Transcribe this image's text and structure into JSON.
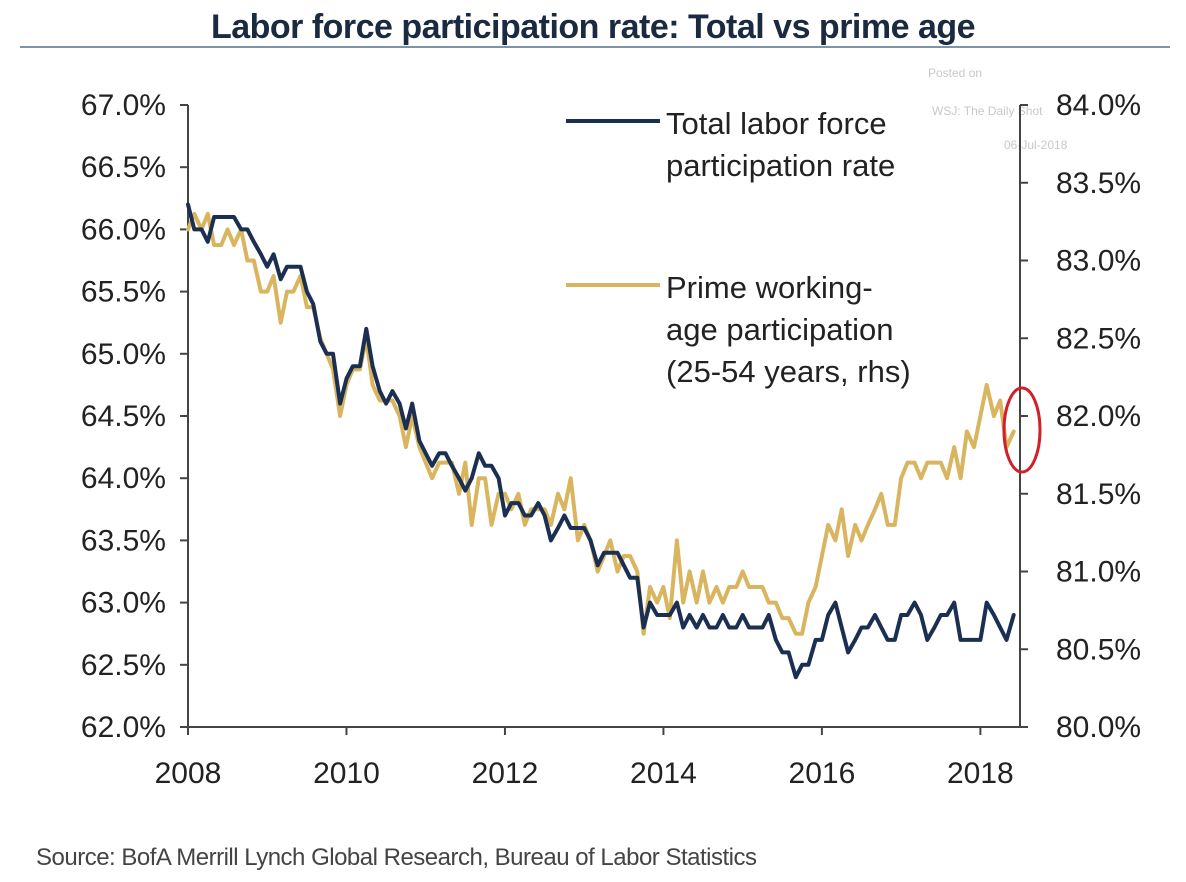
{
  "title": "Labor force participation rate: Total vs prime age",
  "source": "Source: BofA Merrill Lynch Global Research, Bureau of Labor Statistics",
  "watermark": [
    "Posted on",
    "WSJ: The Daily Shot",
    "06-Jul-2018"
  ],
  "colors": {
    "total": "#1b2f52",
    "prime": "#d9b55f",
    "axis": "#444444",
    "highlight": "#d0202a"
  },
  "chart_data": {
    "type": "line",
    "x_axis": {
      "min": 2008,
      "max": 2018.5,
      "ticks": [
        2008,
        2010,
        2012,
        2014,
        2016,
        2018
      ],
      "tick_labels": [
        "2008",
        "2010",
        "2012",
        "2014",
        "2016",
        "2018"
      ]
    },
    "y_left": {
      "min": 62.0,
      "max": 67.0,
      "ticks": [
        62.0,
        62.5,
        63.0,
        63.5,
        64.0,
        64.5,
        65.0,
        65.5,
        66.0,
        66.5,
        67.0
      ],
      "tick_labels": [
        "62.0%",
        "62.5%",
        "63.0%",
        "63.5%",
        "64.0%",
        "64.5%",
        "65.0%",
        "65.5%",
        "66.0%",
        "66.5%",
        "67.0%"
      ]
    },
    "y_right": {
      "min": 80.0,
      "max": 84.0,
      "ticks": [
        80.0,
        80.5,
        81.0,
        81.5,
        82.0,
        82.5,
        83.0,
        83.5,
        84.0
      ],
      "tick_labels": [
        "80.0%",
        "80.5%",
        "81.0%",
        "81.5%",
        "82.0%",
        "82.5%",
        "83.0%",
        "83.5%",
        "84.0%"
      ]
    },
    "series": [
      {
        "name": "Total labor force participation rate",
        "axis": "left",
        "points": [
          [
            2008.0,
            66.2
          ],
          [
            2008.08,
            66.0
          ],
          [
            2008.17,
            66.0
          ],
          [
            2008.25,
            65.9
          ],
          [
            2008.33,
            66.1
          ],
          [
            2008.42,
            66.1
          ],
          [
            2008.5,
            66.1
          ],
          [
            2008.58,
            66.1
          ],
          [
            2008.67,
            66.0
          ],
          [
            2008.75,
            66.0
          ],
          [
            2008.83,
            65.9
          ],
          [
            2008.92,
            65.8
          ],
          [
            2009.0,
            65.7
          ],
          [
            2009.08,
            65.8
          ],
          [
            2009.17,
            65.6
          ],
          [
            2009.25,
            65.7
          ],
          [
            2009.33,
            65.7
          ],
          [
            2009.42,
            65.7
          ],
          [
            2009.5,
            65.5
          ],
          [
            2009.58,
            65.4
          ],
          [
            2009.67,
            65.1
          ],
          [
            2009.75,
            65.0
          ],
          [
            2009.83,
            65.0
          ],
          [
            2009.92,
            64.6
          ],
          [
            2010.0,
            64.8
          ],
          [
            2010.08,
            64.9
          ],
          [
            2010.17,
            64.9
          ],
          [
            2010.25,
            65.2
          ],
          [
            2010.33,
            64.9
          ],
          [
            2010.42,
            64.7
          ],
          [
            2010.5,
            64.6
          ],
          [
            2010.58,
            64.7
          ],
          [
            2010.67,
            64.6
          ],
          [
            2010.75,
            64.4
          ],
          [
            2010.83,
            64.6
          ],
          [
            2010.92,
            64.3
          ],
          [
            2011.0,
            64.2
          ],
          [
            2011.08,
            64.1
          ],
          [
            2011.17,
            64.2
          ],
          [
            2011.25,
            64.2
          ],
          [
            2011.33,
            64.1
          ],
          [
            2011.42,
            64.0
          ],
          [
            2011.5,
            63.9
          ],
          [
            2011.58,
            64.0
          ],
          [
            2011.67,
            64.2
          ],
          [
            2011.75,
            64.1
          ],
          [
            2011.83,
            64.1
          ],
          [
            2011.92,
            64.0
          ],
          [
            2012.0,
            63.7
          ],
          [
            2012.08,
            63.8
          ],
          [
            2012.17,
            63.8
          ],
          [
            2012.25,
            63.7
          ],
          [
            2012.33,
            63.7
          ],
          [
            2012.42,
            63.8
          ],
          [
            2012.5,
            63.7
          ],
          [
            2012.58,
            63.5
          ],
          [
            2012.67,
            63.6
          ],
          [
            2012.75,
            63.7
          ],
          [
            2012.83,
            63.6
          ],
          [
            2012.92,
            63.6
          ],
          [
            2013.0,
            63.6
          ],
          [
            2013.08,
            63.5
          ],
          [
            2013.17,
            63.3
          ],
          [
            2013.25,
            63.4
          ],
          [
            2013.33,
            63.4
          ],
          [
            2013.42,
            63.4
          ],
          [
            2013.5,
            63.3
          ],
          [
            2013.58,
            63.2
          ],
          [
            2013.67,
            63.2
          ],
          [
            2013.75,
            62.8
          ],
          [
            2013.83,
            63.0
          ],
          [
            2013.92,
            62.9
          ],
          [
            2014.0,
            62.9
          ],
          [
            2014.08,
            62.9
          ],
          [
            2014.17,
            63.0
          ],
          [
            2014.25,
            62.8
          ],
          [
            2014.33,
            62.9
          ],
          [
            2014.42,
            62.8
          ],
          [
            2014.5,
            62.9
          ],
          [
            2014.58,
            62.8
          ],
          [
            2014.67,
            62.8
          ],
          [
            2014.75,
            62.9
          ],
          [
            2014.83,
            62.8
          ],
          [
            2014.92,
            62.8
          ],
          [
            2015.0,
            62.9
          ],
          [
            2015.08,
            62.8
          ],
          [
            2015.17,
            62.8
          ],
          [
            2015.25,
            62.8
          ],
          [
            2015.33,
            62.9
          ],
          [
            2015.42,
            62.7
          ],
          [
            2015.5,
            62.6
          ],
          [
            2015.58,
            62.6
          ],
          [
            2015.67,
            62.4
          ],
          [
            2015.75,
            62.5
          ],
          [
            2015.83,
            62.5
          ],
          [
            2015.92,
            62.7
          ],
          [
            2016.0,
            62.7
          ],
          [
            2016.08,
            62.9
          ],
          [
            2016.17,
            63.0
          ],
          [
            2016.25,
            62.8
          ],
          [
            2016.33,
            62.6
          ],
          [
            2016.42,
            62.7
          ],
          [
            2016.5,
            62.8
          ],
          [
            2016.58,
            62.8
          ],
          [
            2016.67,
            62.9
          ],
          [
            2016.75,
            62.8
          ],
          [
            2016.83,
            62.7
          ],
          [
            2016.92,
            62.7
          ],
          [
            2017.0,
            62.9
          ],
          [
            2017.08,
            62.9
          ],
          [
            2017.17,
            63.0
          ],
          [
            2017.25,
            62.9
          ],
          [
            2017.33,
            62.7
          ],
          [
            2017.42,
            62.8
          ],
          [
            2017.5,
            62.9
          ],
          [
            2017.58,
            62.9
          ],
          [
            2017.67,
            63.0
          ],
          [
            2017.75,
            62.7
          ],
          [
            2017.83,
            62.7
          ],
          [
            2017.92,
            62.7
          ],
          [
            2018.0,
            62.7
          ],
          [
            2018.08,
            63.0
          ],
          [
            2018.17,
            62.9
          ],
          [
            2018.25,
            62.8
          ],
          [
            2018.33,
            62.7
          ],
          [
            2018.42,
            62.9
          ]
        ]
      },
      {
        "name": "Prime working-age participation (25-54 years, rhs)",
        "axis": "right",
        "points": [
          [
            2008.0,
            83.2
          ],
          [
            2008.08,
            83.3
          ],
          [
            2008.17,
            83.2
          ],
          [
            2008.25,
            83.3
          ],
          [
            2008.33,
            83.1
          ],
          [
            2008.42,
            83.1
          ],
          [
            2008.5,
            83.2
          ],
          [
            2008.58,
            83.1
          ],
          [
            2008.67,
            83.2
          ],
          [
            2008.75,
            83.0
          ],
          [
            2008.83,
            83.0
          ],
          [
            2008.92,
            82.8
          ],
          [
            2009.0,
            82.8
          ],
          [
            2009.08,
            82.9
          ],
          [
            2009.17,
            82.6
          ],
          [
            2009.25,
            82.8
          ],
          [
            2009.33,
            82.8
          ],
          [
            2009.42,
            82.9
          ],
          [
            2009.5,
            82.7
          ],
          [
            2009.58,
            82.7
          ],
          [
            2009.67,
            82.5
          ],
          [
            2009.75,
            82.4
          ],
          [
            2009.83,
            82.3
          ],
          [
            2009.92,
            82.0
          ],
          [
            2010.0,
            82.2
          ],
          [
            2010.08,
            82.3
          ],
          [
            2010.17,
            82.3
          ],
          [
            2010.25,
            82.5
          ],
          [
            2010.33,
            82.2
          ],
          [
            2010.42,
            82.1
          ],
          [
            2010.5,
            82.1
          ],
          [
            2010.58,
            82.1
          ],
          [
            2010.67,
            82.0
          ],
          [
            2010.75,
            81.8
          ],
          [
            2010.83,
            82.0
          ],
          [
            2010.92,
            81.8
          ],
          [
            2011.0,
            81.7
          ],
          [
            2011.08,
            81.6
          ],
          [
            2011.17,
            81.7
          ],
          [
            2011.25,
            81.7
          ],
          [
            2011.33,
            81.7
          ],
          [
            2011.42,
            81.5
          ],
          [
            2011.5,
            81.7
          ],
          [
            2011.58,
            81.3
          ],
          [
            2011.67,
            81.6
          ],
          [
            2011.75,
            81.6
          ],
          [
            2011.83,
            81.3
          ],
          [
            2011.92,
            81.5
          ],
          [
            2012.0,
            81.5
          ],
          [
            2012.08,
            81.4
          ],
          [
            2012.17,
            81.5
          ],
          [
            2012.25,
            81.3
          ],
          [
            2012.33,
            81.4
          ],
          [
            2012.42,
            81.4
          ],
          [
            2012.5,
            81.4
          ],
          [
            2012.58,
            81.3
          ],
          [
            2012.67,
            81.5
          ],
          [
            2012.75,
            81.4
          ],
          [
            2012.83,
            81.6
          ],
          [
            2012.92,
            81.2
          ],
          [
            2013.0,
            81.3
          ],
          [
            2013.08,
            81.2
          ],
          [
            2013.17,
            81.0
          ],
          [
            2013.25,
            81.1
          ],
          [
            2013.33,
            81.2
          ],
          [
            2013.42,
            81.0
          ],
          [
            2013.5,
            81.1
          ],
          [
            2013.58,
            81.1
          ],
          [
            2013.67,
            81.0
          ],
          [
            2013.75,
            80.6
          ],
          [
            2013.83,
            80.9
          ],
          [
            2013.92,
            80.8
          ],
          [
            2014.0,
            80.9
          ],
          [
            2014.08,
            80.7
          ],
          [
            2014.17,
            81.2
          ],
          [
            2014.25,
            80.8
          ],
          [
            2014.33,
            81.0
          ],
          [
            2014.42,
            80.8
          ],
          [
            2014.5,
            81.0
          ],
          [
            2014.58,
            80.8
          ],
          [
            2014.67,
            80.9
          ],
          [
            2014.75,
            80.8
          ],
          [
            2014.83,
            80.9
          ],
          [
            2014.92,
            80.9
          ],
          [
            2015.0,
            81.0
          ],
          [
            2015.08,
            80.9
          ],
          [
            2015.17,
            80.9
          ],
          [
            2015.25,
            80.9
          ],
          [
            2015.33,
            80.8
          ],
          [
            2015.42,
            80.8
          ],
          [
            2015.5,
            80.7
          ],
          [
            2015.58,
            80.7
          ],
          [
            2015.67,
            80.6
          ],
          [
            2015.75,
            80.6
          ],
          [
            2015.83,
            80.8
          ],
          [
            2015.92,
            80.9
          ],
          [
            2016.0,
            81.1
          ],
          [
            2016.08,
            81.3
          ],
          [
            2016.17,
            81.2
          ],
          [
            2016.25,
            81.4
          ],
          [
            2016.33,
            81.1
          ],
          [
            2016.42,
            81.3
          ],
          [
            2016.5,
            81.2
          ],
          [
            2016.58,
            81.3
          ],
          [
            2016.67,
            81.4
          ],
          [
            2016.75,
            81.5
          ],
          [
            2016.83,
            81.3
          ],
          [
            2016.92,
            81.3
          ],
          [
            2017.0,
            81.6
          ],
          [
            2017.08,
            81.7
          ],
          [
            2017.17,
            81.7
          ],
          [
            2017.25,
            81.6
          ],
          [
            2017.33,
            81.7
          ],
          [
            2017.42,
            81.7
          ],
          [
            2017.5,
            81.7
          ],
          [
            2017.58,
            81.6
          ],
          [
            2017.67,
            81.8
          ],
          [
            2017.75,
            81.6
          ],
          [
            2017.83,
            81.9
          ],
          [
            2017.92,
            81.8
          ],
          [
            2018.0,
            82.0
          ],
          [
            2018.08,
            82.2
          ],
          [
            2018.17,
            82.0
          ],
          [
            2018.25,
            82.1
          ],
          [
            2018.33,
            81.8
          ],
          [
            2018.42,
            81.9
          ]
        ]
      }
    ],
    "legend": [
      {
        "lines": [
          "Total labor force",
          "participation rate"
        ],
        "series": "total"
      },
      {
        "lines": [
          "Prime working-",
          "age participation",
          "(25-54 years, rhs)"
        ],
        "series": "prime"
      }
    ]
  }
}
